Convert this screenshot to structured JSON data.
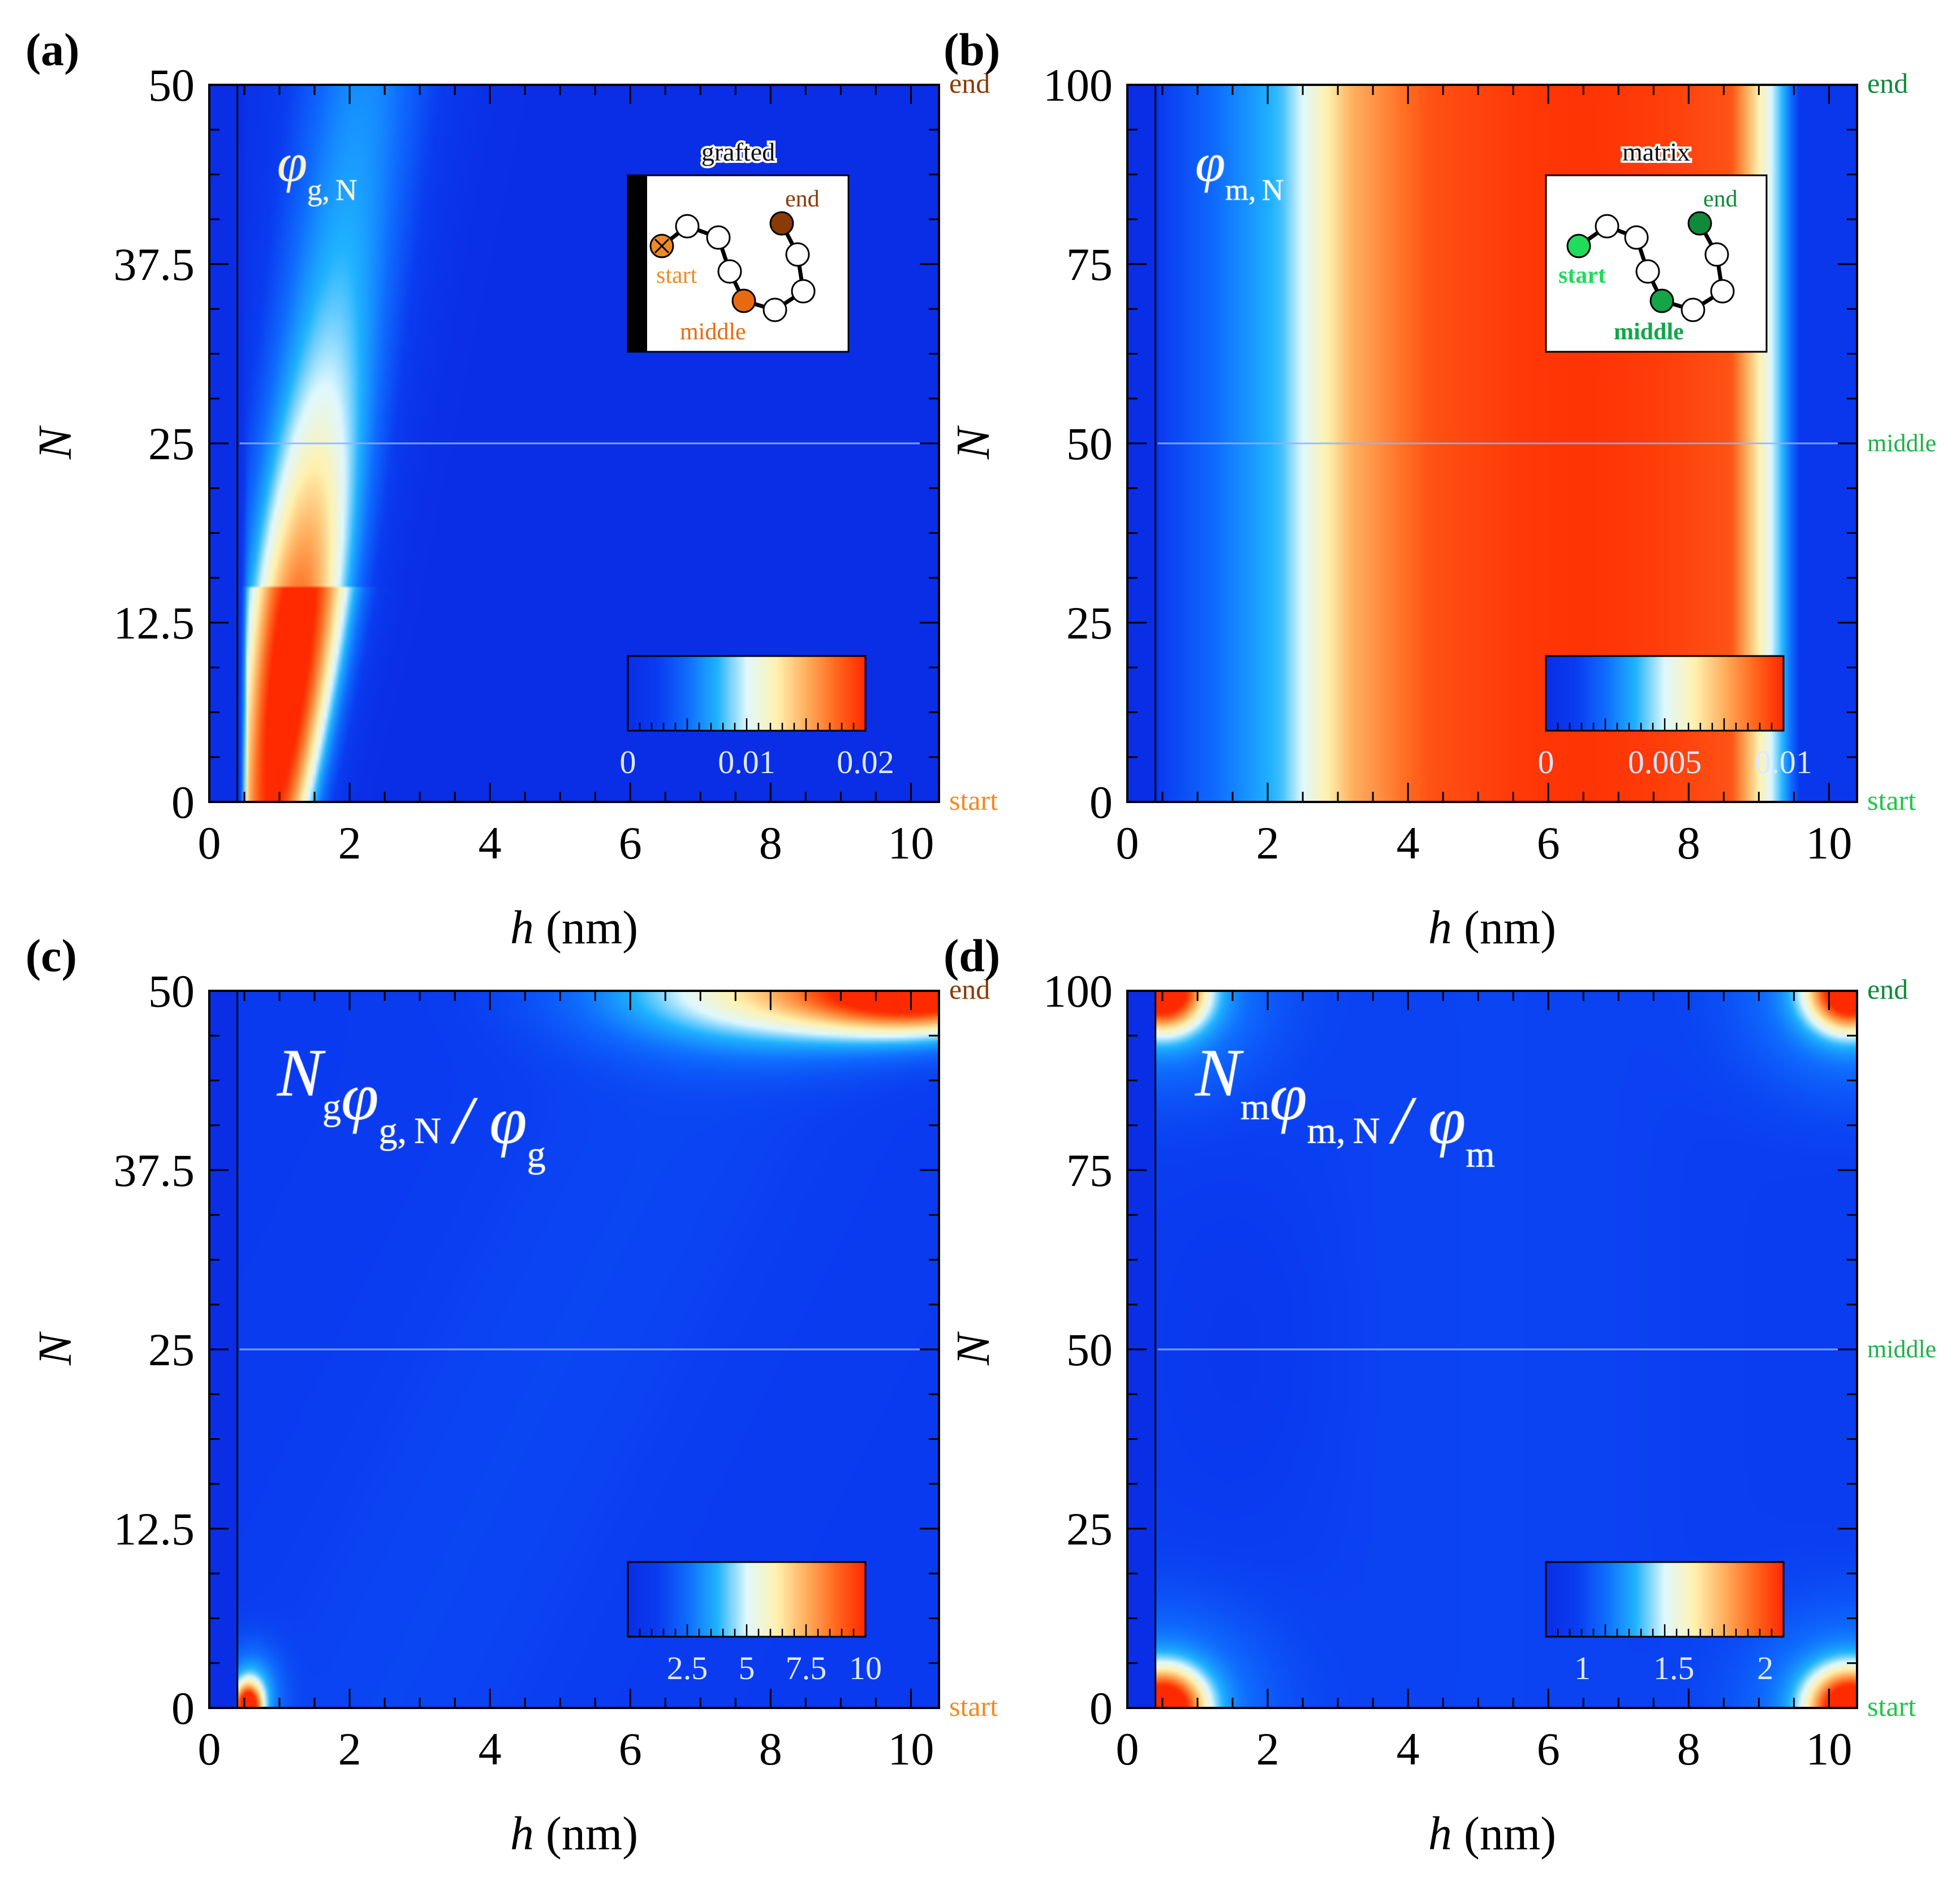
{
  "colormap_stops": [
    "#0a2ee6",
    "#0a3cf0",
    "#0f6cff",
    "#1fb2ff",
    "#dff8ff",
    "#fff2b0",
    "#ffb060",
    "#ff6a20",
    "#ff2a00"
  ],
  "colors": {
    "grafted_start": "#f08a24",
    "grafted_middle": "#e86a10",
    "grafted_end": "#8a3a05",
    "matrix_start": "#1fdc5a",
    "matrix_middle": "#13a548",
    "matrix_end": "#0f8a3a",
    "guide_line": "#8fb4ff"
  },
  "chart_data": [
    {
      "type": "heatmap",
      "panel_label": "(a)",
      "title": "φg,N",
      "title_parts": [
        "φ",
        "g,N"
      ],
      "xlabel_italic": "h",
      "xlabel_rest": " (nm)",
      "ylabel": "N",
      "xlim": [
        0,
        10.4
      ],
      "ylim": [
        0,
        50
      ],
      "xticks": [
        0,
        2,
        4,
        6,
        8,
        10
      ],
      "ytick_values": [
        0,
        12.5,
        25,
        37.5,
        50
      ],
      "ytick_labels": [
        "0",
        "12.5",
        "25",
        "37.5",
        "50"
      ],
      "wall_h": 0.4,
      "field": "grafted_phi",
      "colorbar": {
        "ticks": [
          0,
          0.01,
          0.02
        ],
        "tick_labels": [
          "0",
          "0.01",
          "0.02"
        ],
        "range": [
          0,
          0.02
        ]
      },
      "right_labels": {
        "end": "end",
        "middle": "",
        "start": "start"
      },
      "right_label_color_end": "#8a3a05",
      "right_label_color_start": "#f08a24",
      "inset": {
        "title": "grafted",
        "start": "start",
        "middle": "middle",
        "end": "end",
        "kind": "grafted"
      }
    },
    {
      "type": "heatmap",
      "panel_label": "(b)",
      "title": "φm,N",
      "title_parts": [
        "φ",
        "m,N"
      ],
      "xlabel_italic": "h",
      "xlabel_rest": " (nm)",
      "ylabel": "N",
      "xlim": [
        0,
        10.4
      ],
      "ylim": [
        0,
        100
      ],
      "xticks": [
        0,
        2,
        4,
        6,
        8,
        10
      ],
      "ytick_values": [
        0,
        25,
        50,
        75,
        100
      ],
      "ytick_labels": [
        "0",
        "25",
        "50",
        "75",
        "100"
      ],
      "wall_h": 0.4,
      "field": "matrix_phi",
      "colorbar": {
        "ticks": [
          0,
          0.005,
          0.01
        ],
        "tick_labels": [
          "0",
          "0.005",
          "0.01"
        ],
        "range": [
          0,
          0.01
        ]
      },
      "right_labels": {
        "end": "end",
        "middle": "middle",
        "start": "start"
      },
      "right_label_color_end": "#0f8a3a",
      "right_label_color_start": "#1fc54a",
      "inset": {
        "title": "matrix",
        "start": "start",
        "middle": "middle",
        "end": "end",
        "kind": "matrix"
      }
    },
    {
      "type": "heatmap",
      "panel_label": "(c)",
      "title": "Ngφg,N / φg",
      "title_parts": [
        "N",
        "g",
        "φ",
        "g,N",
        "/",
        "φ",
        "g"
      ],
      "xlabel_italic": "h",
      "xlabel_rest": " (nm)",
      "ylabel": "N",
      "xlim": [
        0,
        10.4
      ],
      "ylim": [
        0,
        50
      ],
      "xticks": [
        0,
        2,
        4,
        6,
        8,
        10
      ],
      "ytick_values": [
        0,
        12.5,
        25,
        37.5,
        50
      ],
      "ytick_labels": [
        "0",
        "12.5",
        "25",
        "37.5",
        "50"
      ],
      "wall_h": 0.4,
      "field": "grafted_norm",
      "colorbar": {
        "ticks": [
          2.5,
          5,
          7.5,
          10
        ],
        "tick_labels": [
          "2.5",
          "5",
          "7.5",
          "10"
        ],
        "range": [
          0,
          10
        ]
      },
      "right_labels": {
        "end": "end",
        "middle": "",
        "start": "start"
      },
      "right_label_color_end": "#8a3a05",
      "right_label_color_start": "#f08a24"
    },
    {
      "type": "heatmap",
      "panel_label": "(d)",
      "title": "Nmφm,N / φm",
      "title_parts": [
        "N",
        "m",
        "φ",
        "m,N",
        "/",
        "φ",
        "m"
      ],
      "xlabel_italic": "h",
      "xlabel_rest": " (nm)",
      "ylabel": "N",
      "xlim": [
        0,
        10.4
      ],
      "ylim": [
        0,
        100
      ],
      "xticks": [
        0,
        2,
        4,
        6,
        8,
        10
      ],
      "ytick_values": [
        0,
        25,
        50,
        75,
        100
      ],
      "ytick_labels": [
        "0",
        "25",
        "50",
        "75",
        "100"
      ],
      "wall_h": 0.4,
      "field": "matrix_norm",
      "colorbar": {
        "ticks": [
          1,
          1.5,
          2
        ],
        "tick_labels": [
          "1",
          "1.5",
          "2"
        ],
        "range": [
          0.8,
          2.1
        ]
      },
      "right_labels": {
        "end": "end",
        "middle": "middle",
        "start": "start"
      },
      "right_label_color_end": "#0f8a3a",
      "right_label_color_start": "#1fc54a"
    }
  ]
}
